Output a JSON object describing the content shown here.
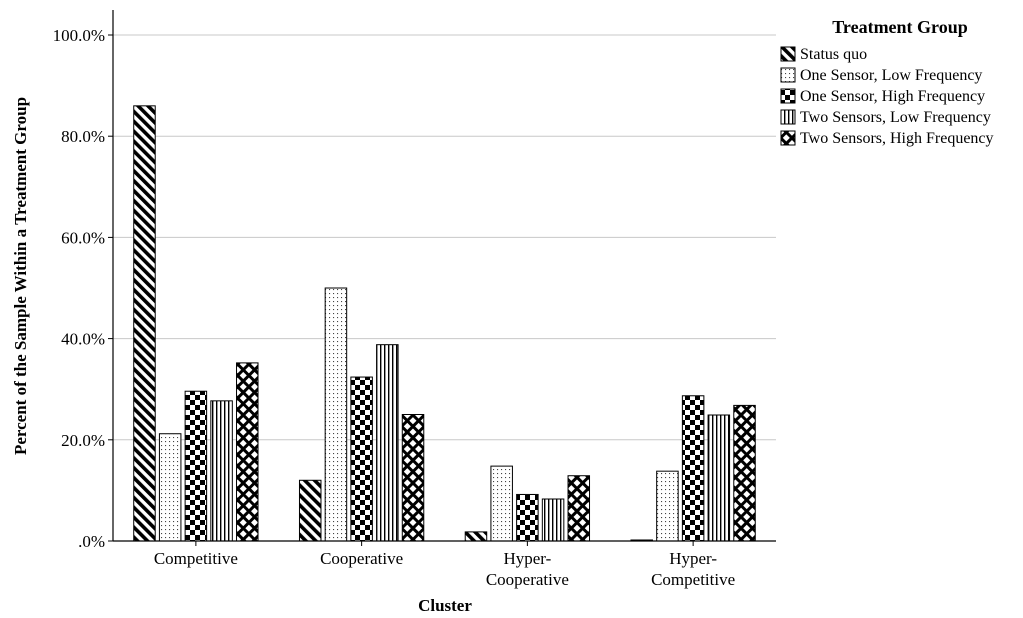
{
  "chart_data": {
    "type": "bar",
    "xlabel": "Cluster",
    "ylabel": "Percent of the Sample Within a Treatment Group",
    "ylim": [
      0,
      100
    ],
    "yticks": [
      ".0%",
      "20.0%",
      "40.0%",
      "60.0%",
      "80.0%",
      "100.0%"
    ],
    "grid": "horizontal",
    "legend_title": "Treatment Group",
    "legend_position": "top-right",
    "categories": [
      [
        "Competitive"
      ],
      [
        "Cooperative"
      ],
      [
        "Hyper-",
        "Cooperative"
      ],
      [
        "Hyper-",
        "Competitive"
      ]
    ],
    "series": [
      {
        "name": "Status quo",
        "pattern": "diagonal",
        "values": [
          86.0,
          12.0,
          1.8,
          0.2
        ]
      },
      {
        "name": "One Sensor, Low Frequency",
        "pattern": "dots",
        "values": [
          21.2,
          50.0,
          14.8,
          13.8
        ]
      },
      {
        "name": "One Sensor, High Frequency",
        "pattern": "checker",
        "values": [
          29.6,
          32.4,
          9.2,
          28.7
        ]
      },
      {
        "name": "Two Sensors, Low Frequency",
        "pattern": "vertical",
        "values": [
          27.7,
          38.8,
          8.3,
          24.9
        ]
      },
      {
        "name": "Two Sensors, High Frequency",
        "pattern": "crosshatch",
        "values": [
          35.2,
          25.0,
          12.9,
          26.8
        ]
      }
    ]
  }
}
